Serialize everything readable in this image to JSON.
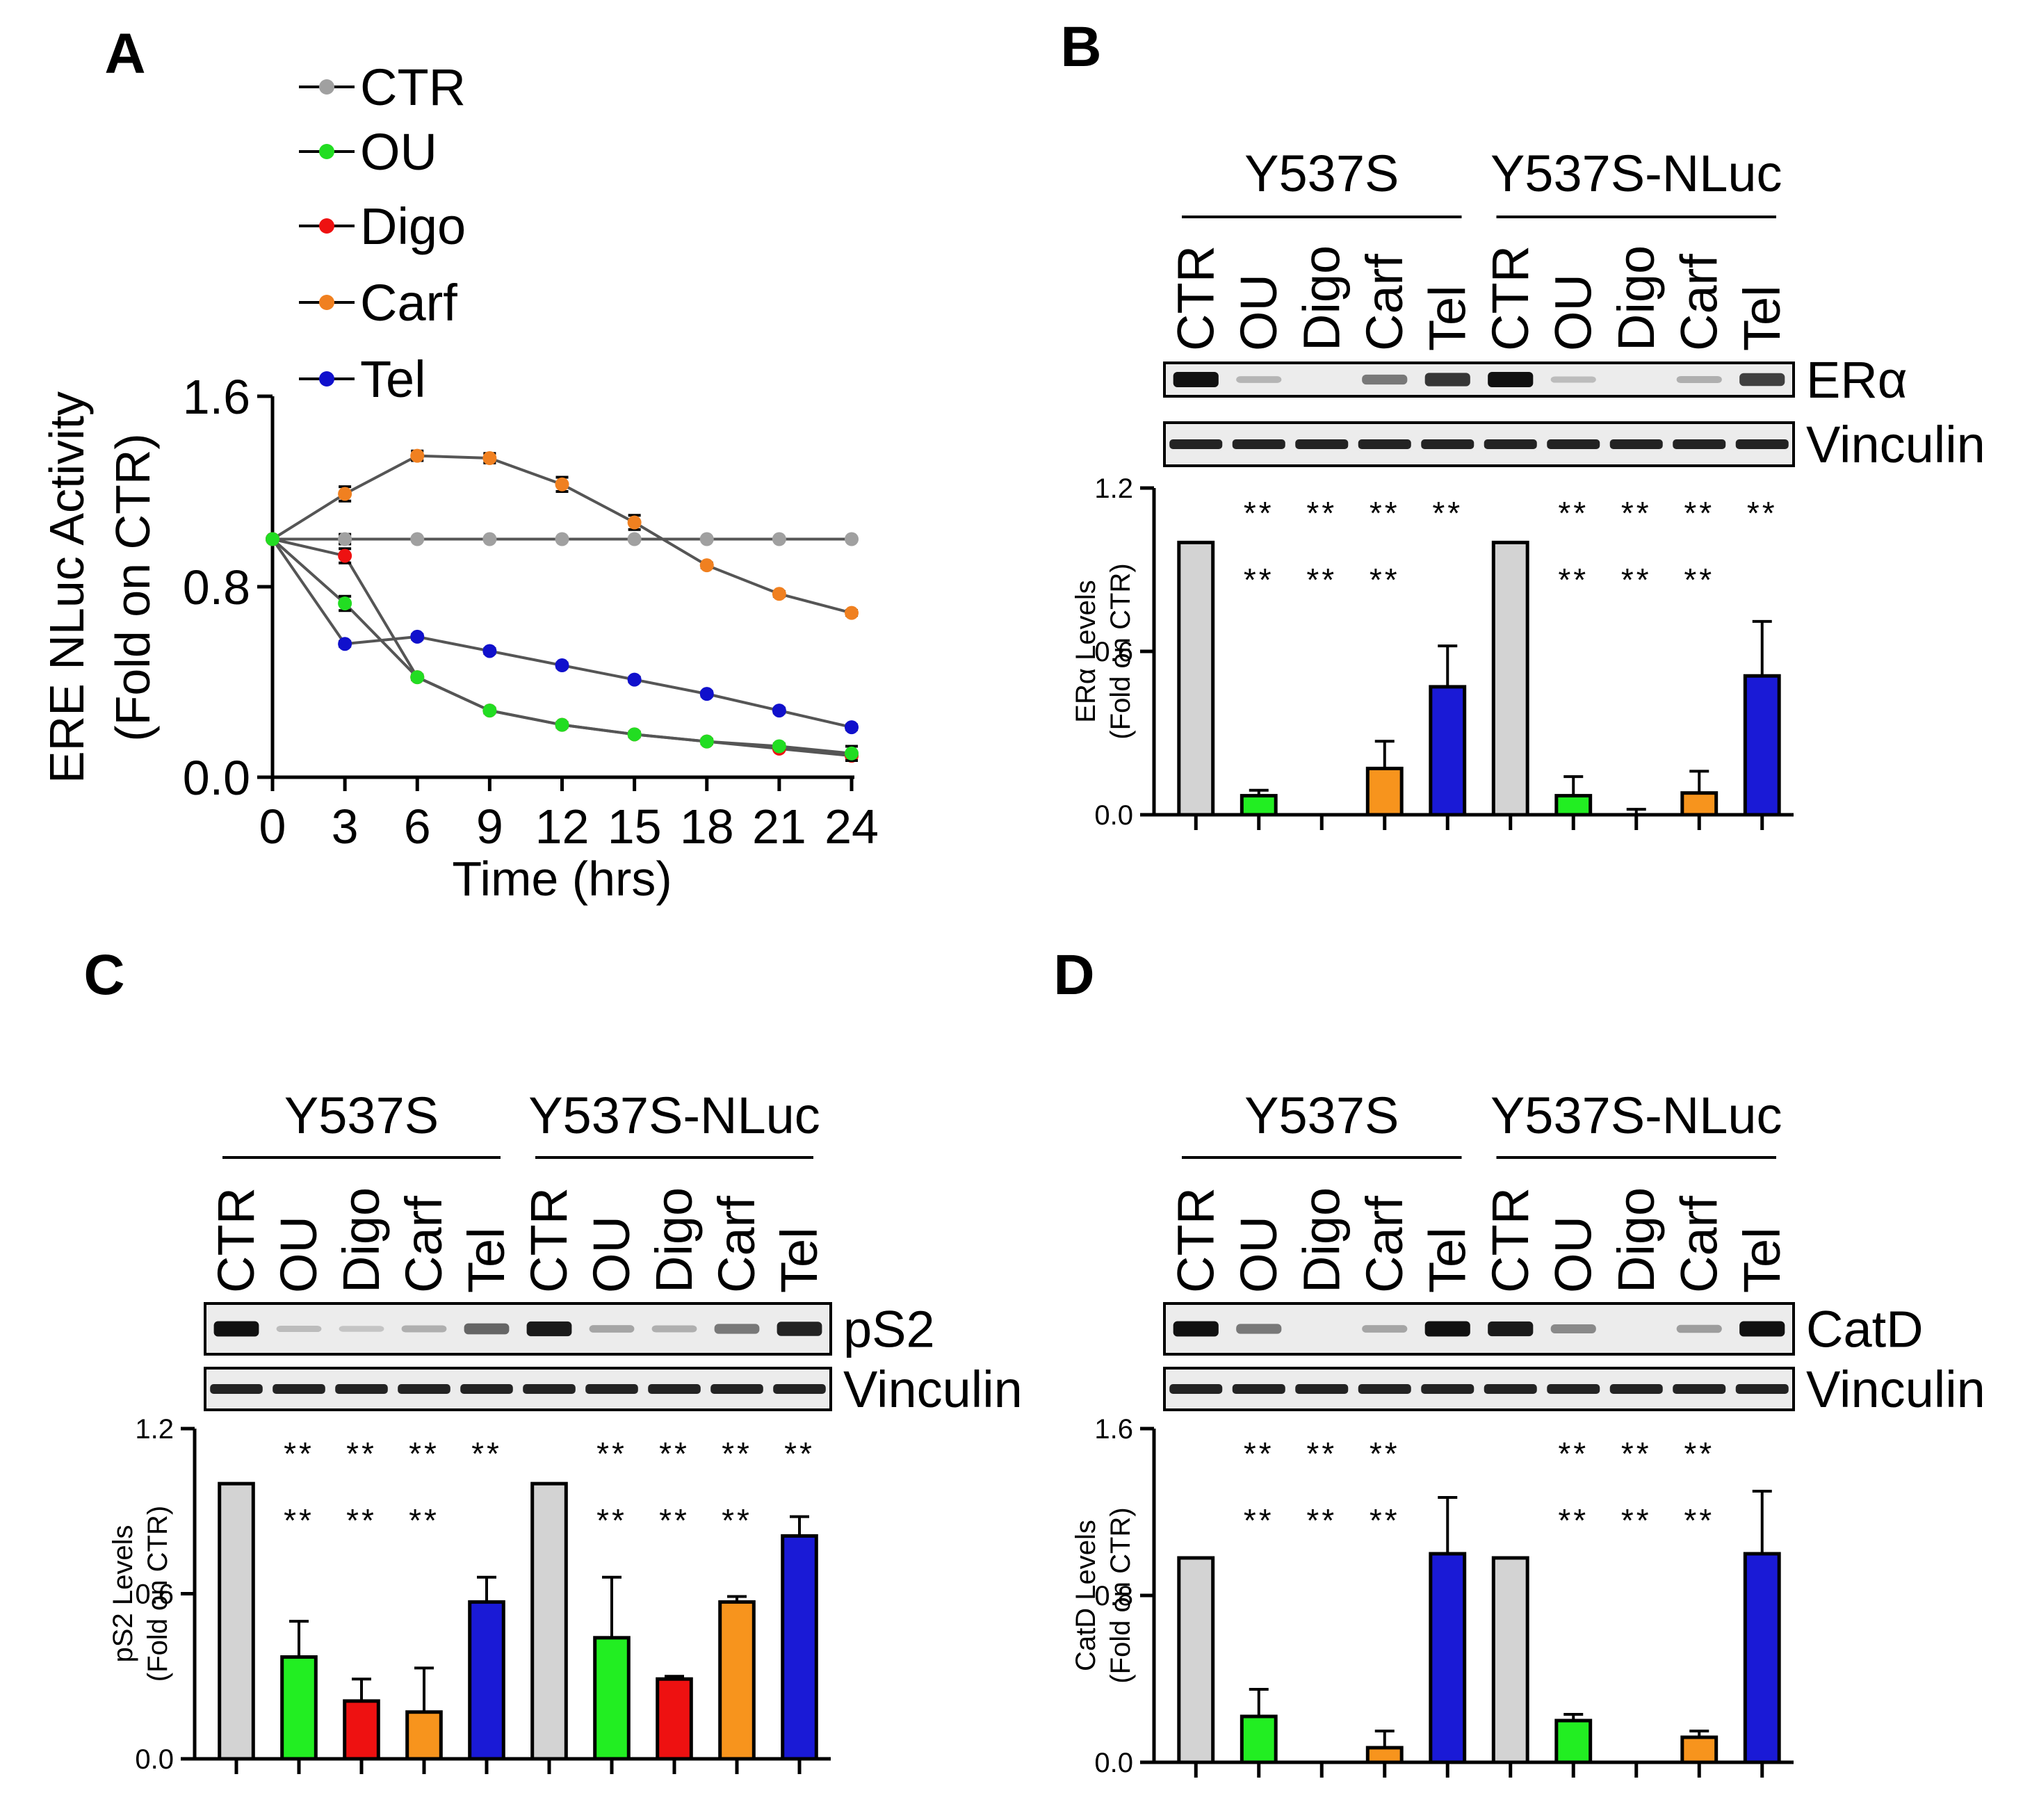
{
  "colors": {
    "CTR": "#a0a0a0",
    "OU": "#22dd22",
    "Digo": "#ee1111",
    "Carf": "#f08020",
    "Tel": "#1010cc",
    "bar_CTR": "#d3d3d3",
    "bar_OU": "#22ee22",
    "bar_Digo": "#ee1111",
    "bar_Carf": "#f7941d",
    "bar_Tel": "#1a1ad6"
  },
  "chart_data": [
    {
      "panel": "A",
      "type": "line",
      "title": "",
      "xlabel": "Time  (hrs)",
      "ylabel_line1": "ERE NLuc Activity",
      "ylabel_line2": "(Fold on CTR)",
      "x": [
        0,
        3,
        6,
        9,
        12,
        15,
        18,
        21,
        24
      ],
      "xticks": [
        "0",
        "3",
        "6",
        "9",
        "12",
        "15",
        "18",
        "21",
        "24"
      ],
      "yticks": [
        "0.0",
        "0.8",
        "1.6"
      ],
      "ylim": [
        0,
        1.6
      ],
      "xlim": [
        0,
        24
      ],
      "legend": [
        "CTR",
        "OU",
        "Digo",
        "Carf",
        "Tel"
      ],
      "series": [
        {
          "name": "CTR",
          "x": [
            0,
            3,
            6,
            9,
            12,
            15,
            18,
            21,
            24
          ],
          "values": [
            1.0,
            1.0,
            1.0,
            1.0,
            1.0,
            1.0,
            1.0,
            1.0,
            1.0
          ],
          "errors": [
            0,
            0.02,
            0,
            0,
            0,
            0,
            0,
            0,
            0
          ]
        },
        {
          "name": "OU",
          "x": [
            0,
            3,
            6,
            9,
            12,
            15,
            18,
            21,
            24
          ],
          "values": [
            1.0,
            0.73,
            0.42,
            0.28,
            0.22,
            0.18,
            0.15,
            0.13,
            0.1
          ],
          "errors": [
            0,
            0.03,
            0.01,
            0.01,
            0.01,
            0.01,
            0.01,
            0.01,
            0.03
          ]
        },
        {
          "name": "Digo",
          "x": [
            0,
            3,
            6,
            9,
            12,
            15,
            18,
            21,
            24
          ],
          "values": [
            1.0,
            0.93,
            0.42,
            0.28,
            0.22,
            0.18,
            0.15,
            0.12,
            0.09
          ],
          "errors": [
            0,
            0.03,
            0,
            0,
            0,
            0,
            0,
            0,
            0
          ]
        },
        {
          "name": "Carf",
          "x": [
            0,
            3,
            6,
            9,
            12,
            15,
            18,
            21,
            24
          ],
          "values": [
            1.0,
            1.19,
            1.35,
            1.34,
            1.23,
            1.07,
            0.89,
            0.77,
            0.69
          ],
          "errors": [
            0,
            0.03,
            0.02,
            0.02,
            0.03,
            0.03,
            0.01,
            0.01,
            0.01
          ]
        },
        {
          "name": "Tel",
          "x": [
            0,
            3,
            6,
            9,
            12,
            15,
            18,
            21,
            24
          ],
          "values": [
            1.0,
            0.56,
            0.59,
            0.53,
            0.47,
            0.41,
            0.35,
            0.28,
            0.21
          ],
          "errors": [
            0,
            0.01,
            0.01,
            0.01,
            0.01,
            0.01,
            0.01,
            0.01,
            0.01
          ]
        }
      ]
    },
    {
      "panel": "B",
      "type": "bar",
      "protein": "ERα",
      "loading_control": "Vinculin",
      "groups": [
        "Y537S",
        "Y537S-NLuc"
      ],
      "categories": [
        "CTR",
        "OU",
        "Digo",
        "Carf",
        "Tel",
        "CTR",
        "OU",
        "Digo",
        "Carf",
        "Tel"
      ],
      "values": [
        1.0,
        0.07,
        0.0,
        0.17,
        0.47,
        1.0,
        0.07,
        0.0,
        0.08,
        0.51
      ],
      "errors": [
        0,
        0.02,
        0,
        0.1,
        0.15,
        0,
        0.07,
        0.02,
        0.08,
        0.2
      ],
      "band_intensity": [
        1.0,
        0.12,
        0.0,
        0.45,
        0.8,
        1.0,
        0.08,
        0.0,
        0.15,
        0.75
      ],
      "stars_row1": [
        "",
        "**",
        "**",
        "**",
        "**",
        "",
        "**",
        "**",
        "**",
        "**"
      ],
      "stars_row2": [
        "",
        "**",
        "**",
        "**",
        "",
        "",
        "**",
        "**",
        "**",
        ""
      ],
      "ylabel_line1": "ERα Levels",
      "ylabel_line2": "(Fold on CTR)",
      "yticks": [
        "0.0",
        "0.6",
        "1.2"
      ],
      "ylim": [
        0,
        1.2
      ]
    },
    {
      "panel": "C",
      "type": "bar",
      "protein": "pS2",
      "loading_control": "Vinculin",
      "groups": [
        "Y537S",
        "Y537S-NLuc"
      ],
      "categories": [
        "CTR",
        "OU",
        "Digo",
        "Carf",
        "Tel",
        "CTR",
        "OU",
        "Digo",
        "Carf",
        "Tel"
      ],
      "values": [
        1.0,
        0.37,
        0.21,
        0.17,
        0.57,
        1.0,
        0.44,
        0.29,
        0.57,
        0.81
      ],
      "errors": [
        0,
        0.13,
        0.08,
        0.16,
        0.09,
        0,
        0.22,
        0.01,
        0.02,
        0.07
      ],
      "band_intensity": [
        1.0,
        0.08,
        0.04,
        0.15,
        0.55,
        0.95,
        0.2,
        0.15,
        0.45,
        0.9
      ],
      "stars_row1": [
        "",
        "**",
        "**",
        "**",
        "**",
        "",
        "**",
        "**",
        "**",
        "**"
      ],
      "stars_row2": [
        "",
        "**",
        "**",
        "**",
        "",
        "",
        "**",
        "**",
        "**",
        ""
      ],
      "ylabel_line1": "pS2 Levels",
      "ylabel_line2": "(Fold on CTR)",
      "yticks": [
        "0.0",
        "0.6",
        "1.2"
      ],
      "ylim": [
        0,
        1.2
      ]
    },
    {
      "panel": "D",
      "type": "bar",
      "protein": "CatD",
      "loading_control": "Vinculin",
      "groups": [
        "Y537S",
        "Y537S-NLuc"
      ],
      "categories": [
        "CTR",
        "OU",
        "Digo",
        "Carf",
        "Tel",
        "CTR",
        "OU",
        "Digo",
        "Carf",
        "Tel"
      ],
      "values": [
        0.98,
        0.22,
        0.0,
        0.07,
        1.0,
        0.98,
        0.2,
        0.0,
        0.12,
        1.0
      ],
      "errors": [
        0,
        0.13,
        0,
        0.08,
        0.27,
        0,
        0.03,
        0,
        0.03,
        0.3
      ],
      "band_intensity": [
        1.0,
        0.45,
        0.0,
        0.2,
        1.0,
        0.95,
        0.35,
        0.0,
        0.25,
        1.0
      ],
      "stars_row1": [
        "",
        "**",
        "**",
        "**",
        "",
        "",
        "**",
        "**",
        "**",
        ""
      ],
      "stars_row2": [
        "",
        "**",
        "**",
        "**",
        "",
        "",
        "**",
        "**",
        "**",
        ""
      ],
      "ylabel_line1": "CatD Levels",
      "ylabel_line2": "(Fold on CTR)",
      "yticks": [
        "0.0",
        "0.8",
        "1.6"
      ],
      "ylim": [
        0,
        1.6
      ]
    }
  ]
}
